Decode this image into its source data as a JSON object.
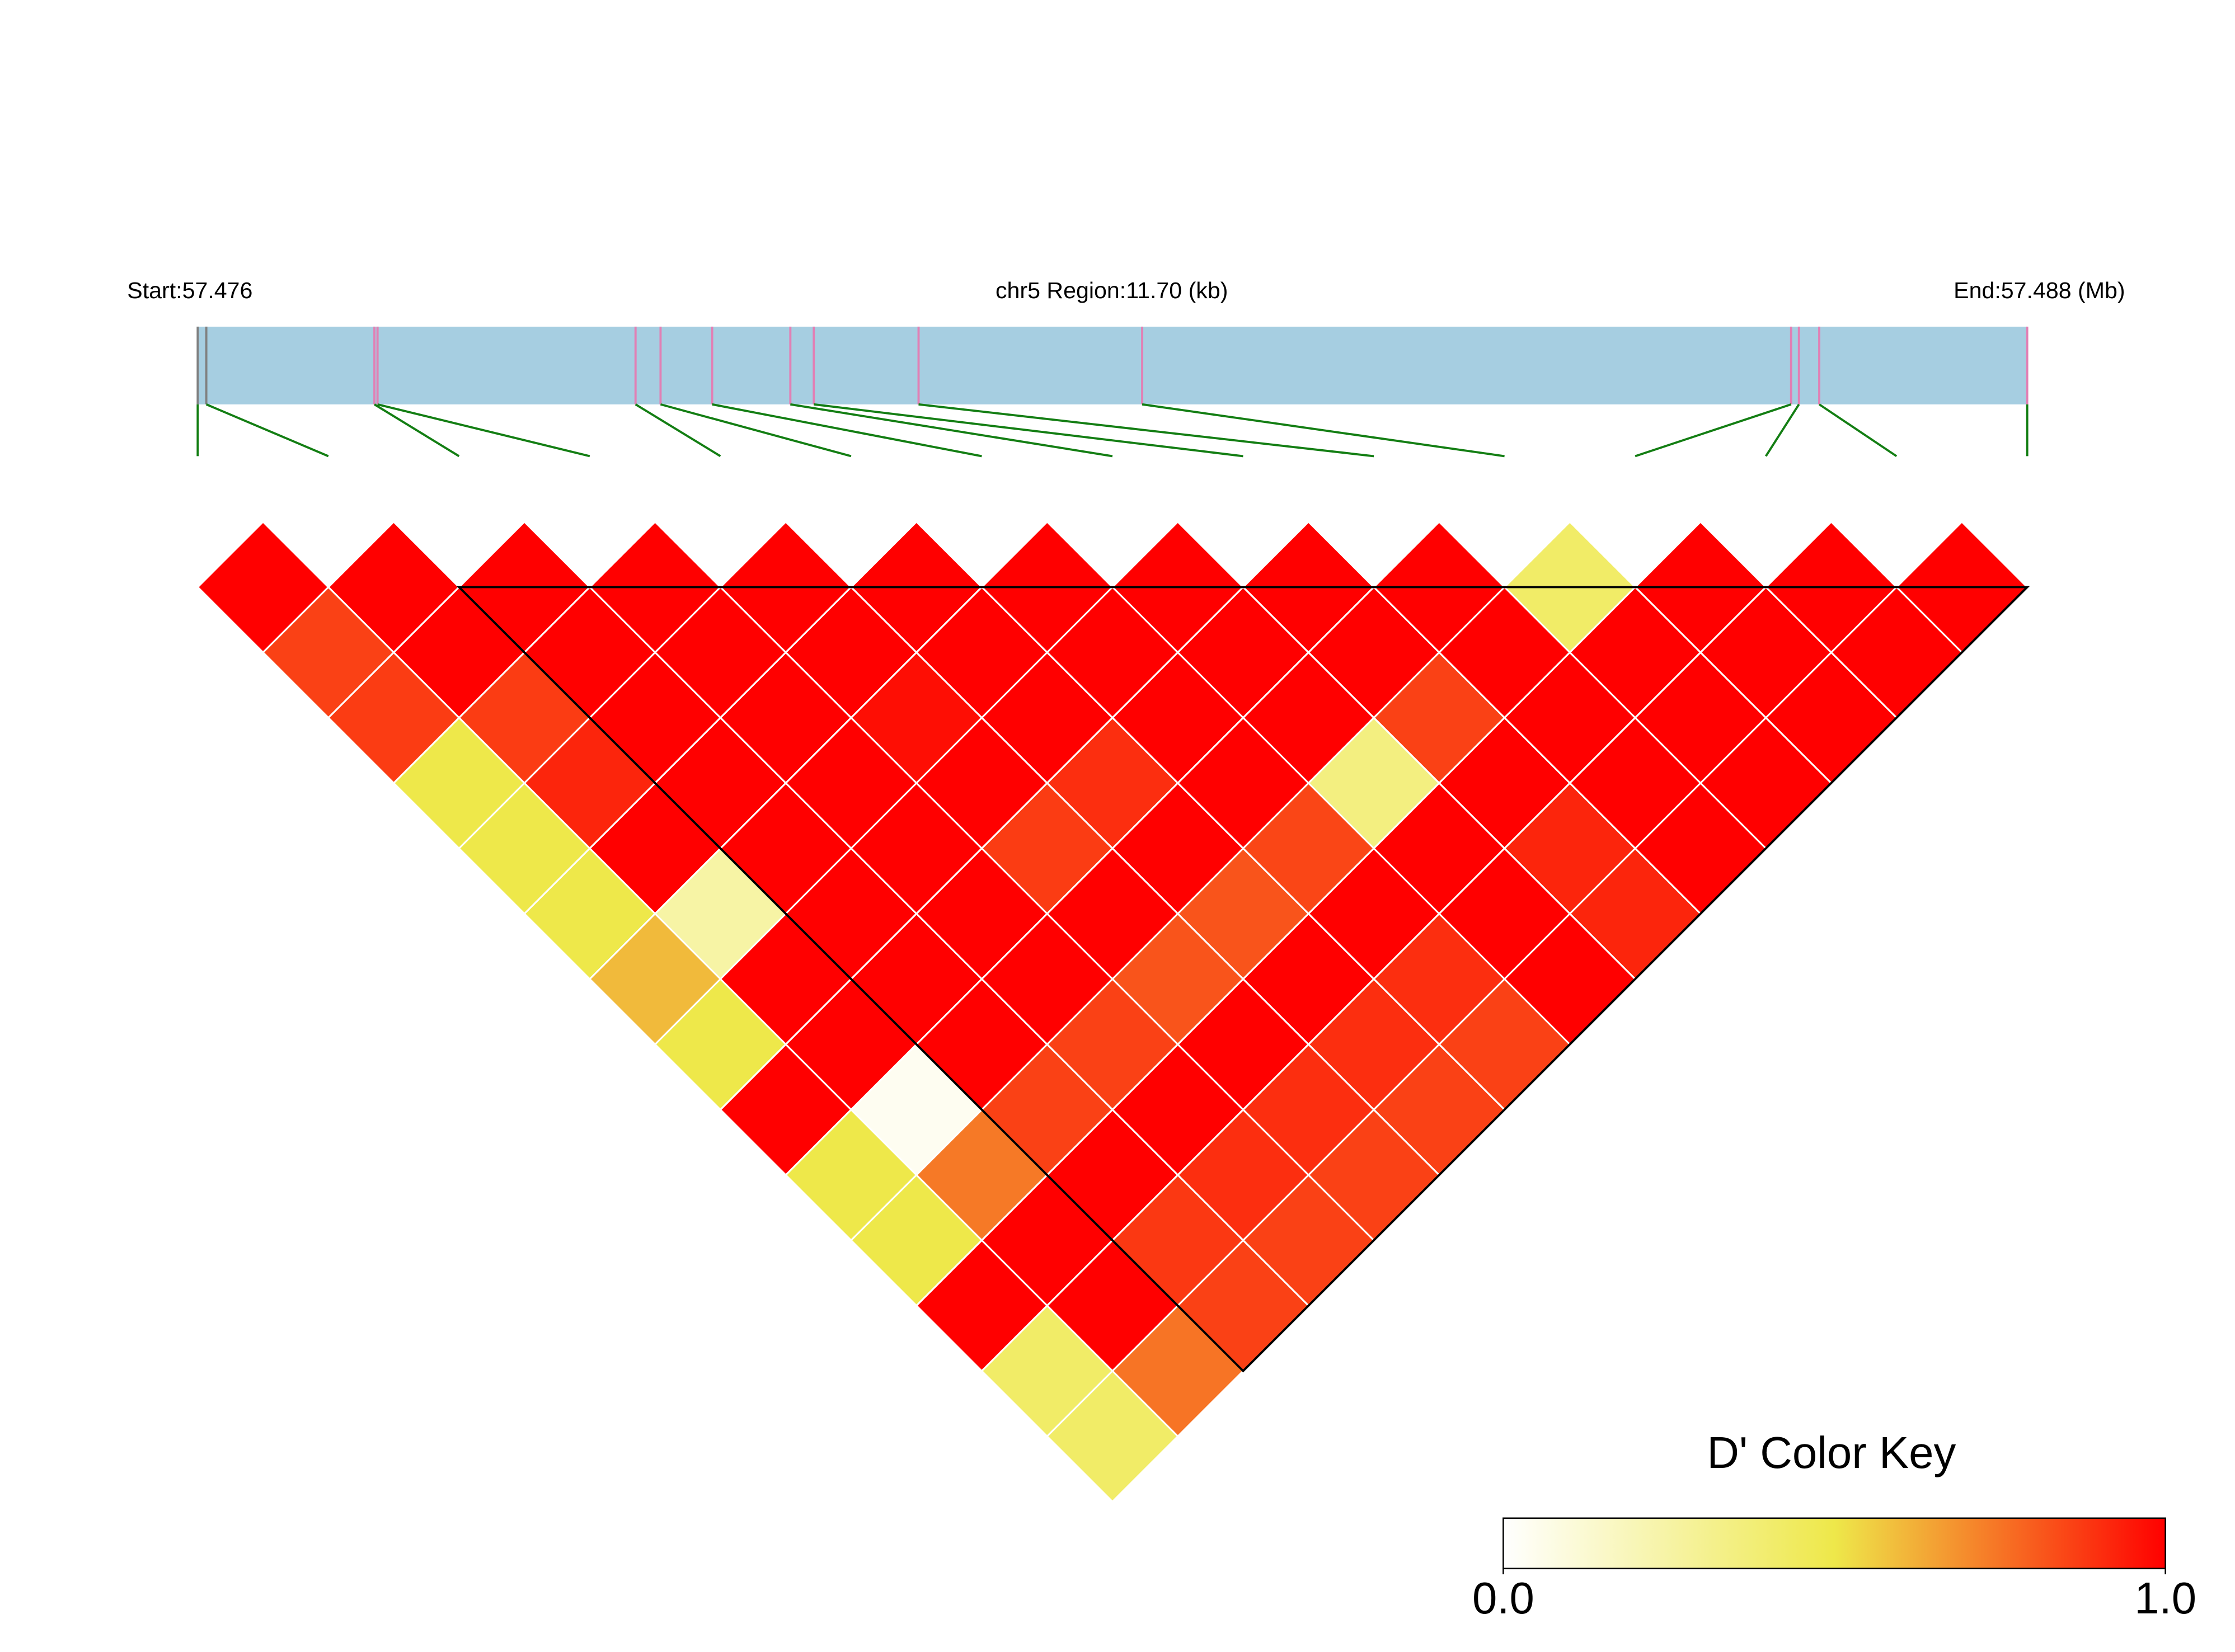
{
  "chart_data": {
    "type": "ld_heatmap",
    "start_label": "Start:57.476",
    "region_label": "chr5 Region:11.70 (kb)",
    "end_label": "End:57.488 (Mb)",
    "xlim": [
      0,
      11.7
    ],
    "positions_kb": [
      0,
      0.055,
      1.13,
      1.15,
      2.8,
      2.96,
      3.29,
      3.79,
      3.94,
      4.61,
      6.04,
      10.19,
      10.24,
      10.37,
      11.7
    ],
    "marker_colors": [
      "#808080",
      "#808080",
      "#e27fb4",
      "#e27fb4",
      "#e27fb4",
      "#e27fb4",
      "#e27fb4",
      "#e27fb4",
      "#e27fb4",
      "#e27fb4",
      "#e27fb4",
      "#e27fb4",
      "#e27fb4",
      "#e27fb4",
      "#e27fb4"
    ],
    "bar_color": "#a6cee1",
    "connector_color": "#137e13",
    "values": [
      [
        1,
        1,
        1,
        1,
        1,
        1,
        1,
        1,
        1,
        1,
        0.42,
        1,
        1,
        1
      ],
      [
        0.86,
        1,
        1,
        1,
        1,
        1,
        1,
        1,
        1,
        1,
        1,
        1,
        1
      ],
      [
        0.87,
        0.87,
        1,
        1,
        0.97,
        1,
        1,
        1,
        0.86,
        1,
        1,
        1
      ],
      [
        0.5,
        0.92,
        1,
        1,
        1,
        0.9,
        1,
        0.35,
        1,
        1,
        1
      ],
      [
        0.5,
        1,
        1,
        1,
        0.87,
        1,
        0.85,
        1,
        0.92,
        1
      ],
      [
        0.5,
        0.25,
        1,
        1,
        1,
        0.82,
        1,
        1,
        0.92
      ],
      [
        0.6,
        1,
        1,
        1,
        0.82,
        1,
        0.9,
        1
      ],
      [
        0.5,
        1,
        1,
        0.86,
        1,
        0.9,
        0.86
      ],
      [
        1,
        0.04,
        0.86,
        1,
        0.9,
        0.86
      ],
      [
        0.5,
        0.74,
        1,
        0.9,
        0.86
      ],
      [
        0.5,
        1,
        0.88,
        0.86
      ],
      [
        1,
        1,
        0.86
      ],
      [
        0.42,
        0.75
      ],
      [
        0.42
      ]
    ],
    "blocks": [
      [
        2,
        14
      ]
    ],
    "colorscale": {
      "stops": [
        0,
        0.5,
        1
      ],
      "colors": [
        "#ffffff",
        "#eee84a",
        "#ff0000"
      ]
    },
    "legend_title": "D' Color Key",
    "legend_lim": [
      0,
      1
    ],
    "legend_ticks": [
      {
        "value": 0,
        "label": "0.0"
      },
      {
        "value": 1,
        "label": "1.0"
      }
    ]
  }
}
